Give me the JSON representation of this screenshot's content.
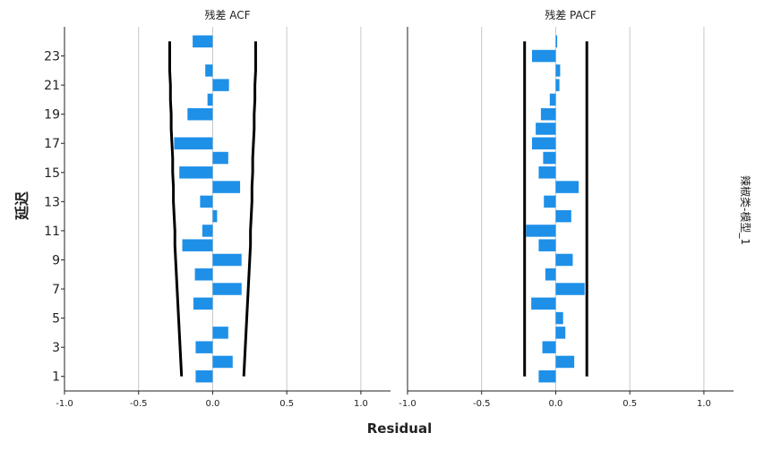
{
  "chart_data": {
    "type": "bar",
    "orientation": "horizontal",
    "xlabel": "Residual",
    "ylabel": "延迟",
    "strip_label": "辣椒类-模型_1",
    "xlim": [
      -1.0,
      1.2
    ],
    "xticks": [
      "-1.0",
      "-0.5",
      "0.0",
      "0.5",
      "1.0"
    ],
    "ylim": [
      0,
      25
    ],
    "yticks": [
      "1",
      "3",
      "5",
      "7",
      "9",
      "11",
      "13",
      "15",
      "17",
      "19",
      "21",
      "23"
    ],
    "grid": "vertical",
    "bar_color": "#1e90e8",
    "lag": [
      1,
      2,
      3,
      4,
      5,
      6,
      7,
      8,
      9,
      10,
      11,
      12,
      13,
      14,
      15,
      16,
      17,
      18,
      19,
      20,
      21,
      22,
      23,
      24
    ],
    "panels": [
      {
        "title": "残差 ACF",
        "values": [
          -0.115,
          0.135,
          -0.115,
          0.105,
          0.0,
          -0.13,
          0.195,
          -0.12,
          0.195,
          -0.205,
          -0.07,
          0.03,
          -0.085,
          0.185,
          -0.225,
          0.105,
          -0.26,
          0.0,
          -0.17,
          -0.035,
          0.11,
          -0.05,
          0.0,
          -0.135
        ],
        "confidence_upper": [
          0.21,
          0.215,
          0.22,
          0.225,
          0.23,
          0.235,
          0.24,
          0.245,
          0.25,
          0.255,
          0.255,
          0.26,
          0.265,
          0.265,
          0.27,
          0.27,
          0.275,
          0.28,
          0.28,
          0.285,
          0.285,
          0.29,
          0.29,
          0.29
        ]
      },
      {
        "title": "残差 PACF",
        "values": [
          -0.115,
          0.125,
          -0.09,
          0.065,
          0.05,
          -0.165,
          0.195,
          -0.07,
          0.115,
          -0.115,
          -0.2,
          0.105,
          -0.08,
          0.155,
          -0.115,
          -0.085,
          -0.16,
          -0.135,
          -0.1,
          -0.04,
          0.025,
          0.03,
          -0.16,
          0.01
        ],
        "confidence_upper": [
          0.21,
          0.21,
          0.21,
          0.21,
          0.21,
          0.21,
          0.21,
          0.21,
          0.21,
          0.21,
          0.21,
          0.21,
          0.21,
          0.21,
          0.21,
          0.21,
          0.21,
          0.21,
          0.21,
          0.21,
          0.21,
          0.21,
          0.21,
          0.21
        ]
      }
    ]
  }
}
